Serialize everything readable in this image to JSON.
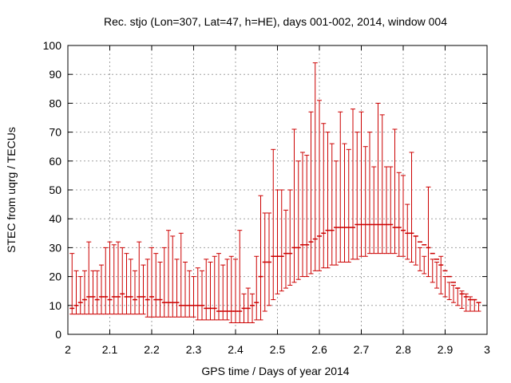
{
  "chart_data": {
    "type": "scatter",
    "title": "Rec. stjo (Lon=307, Lat=47, h=HE), days 001-002, 2014, window 004",
    "xlabel": "GPS time / Days of year 2014",
    "ylabel": "STEC from uqrg / TECUs",
    "xlim": [
      2,
      3
    ],
    "ylim": [
      0,
      100
    ],
    "xticks": [
      "2",
      "2.1",
      "2.2",
      "2.3",
      "2.4",
      "2.5",
      "2.6",
      "2.7",
      "2.8",
      "2.9",
      "3"
    ],
    "yticks": [
      "0",
      "10",
      "20",
      "30",
      "40",
      "50",
      "60",
      "70",
      "80",
      "90",
      "100"
    ],
    "grid": true,
    "color": "#cc0000",
    "series": [
      {
        "x": [
          2.01,
          2.02,
          2.03,
          2.04,
          2.05,
          2.06,
          2.07,
          2.08,
          2.09,
          2.1,
          2.11,
          2.12,
          2.13,
          2.14,
          2.15,
          2.16,
          2.17,
          2.18,
          2.19,
          2.2,
          2.21,
          2.22,
          2.23,
          2.24,
          2.25,
          2.26,
          2.27,
          2.28,
          2.29,
          2.3,
          2.31,
          2.32,
          2.33,
          2.34,
          2.35,
          2.36,
          2.37,
          2.38,
          2.39,
          2.4,
          2.41,
          2.42,
          2.43,
          2.44,
          2.45,
          2.46,
          2.47,
          2.48,
          2.49,
          2.5,
          2.51,
          2.52,
          2.53,
          2.54,
          2.55,
          2.56,
          2.57,
          2.58,
          2.59,
          2.6,
          2.61,
          2.62,
          2.63,
          2.64,
          2.65,
          2.66,
          2.67,
          2.68,
          2.69,
          2.7,
          2.71,
          2.72,
          2.73,
          2.74,
          2.75,
          2.76,
          2.77,
          2.78,
          2.79,
          2.8,
          2.81,
          2.82,
          2.83,
          2.84,
          2.85,
          2.86,
          2.87,
          2.88,
          2.89,
          2.9,
          2.91,
          2.92,
          2.93,
          2.94,
          2.95,
          2.96,
          2.97,
          2.98
        ],
        "y": [
          9,
          10,
          11,
          12,
          13,
          13,
          12,
          13,
          13,
          12,
          13,
          13,
          14,
          13,
          13,
          12,
          13,
          13,
          12,
          13,
          12,
          12,
          11,
          11,
          11,
          11,
          10,
          10,
          10,
          10,
          10,
          10,
          9,
          9,
          9,
          8,
          8,
          8,
          8,
          8,
          8,
          9,
          9,
          10,
          11,
          20,
          25,
          25,
          27,
          27,
          27,
          28,
          28,
          30,
          30,
          31,
          31,
          32,
          33,
          34,
          35,
          36,
          36,
          37,
          37,
          37,
          37,
          37,
          38,
          38,
          38,
          38,
          38,
          38,
          38,
          38,
          38,
          37,
          37,
          36,
          35,
          35,
          34,
          32,
          31,
          30,
          28,
          26,
          24,
          22,
          20,
          18,
          16,
          14,
          13,
          12,
          12,
          11
        ],
        "ymin": [
          7,
          7,
          7,
          7,
          7,
          7,
          7,
          7,
          7,
          7,
          7,
          7,
          7,
          7,
          7,
          7,
          7,
          7,
          6,
          6,
          6,
          6,
          6,
          6,
          6,
          6,
          6,
          6,
          6,
          6,
          5,
          5,
          5,
          5,
          5,
          5,
          5,
          5,
          4,
          4,
          4,
          4,
          4,
          4,
          5,
          5,
          8,
          10,
          12,
          14,
          15,
          16,
          17,
          18,
          19,
          20,
          20,
          21,
          22,
          22,
          23,
          23,
          24,
          24,
          25,
          25,
          25,
          26,
          26,
          27,
          27,
          28,
          28,
          28,
          28,
          28,
          28,
          28,
          27,
          27,
          26,
          25,
          24,
          22,
          21,
          20,
          18,
          16,
          14,
          13,
          12,
          11,
          10,
          9,
          8,
          8,
          8,
          8
        ],
        "ymax": [
          28,
          22,
          20,
          22,
          32,
          22,
          22,
          24,
          30,
          32,
          31,
          32,
          30,
          28,
          26,
          22,
          32,
          24,
          26,
          30,
          28,
          25,
          30,
          36,
          34,
          26,
          35,
          25,
          22,
          20,
          23,
          22,
          26,
          25,
          27,
          28,
          24,
          26,
          27,
          26,
          36,
          14,
          16,
          14,
          27,
          48,
          42,
          42,
          64,
          50,
          50,
          43,
          50,
          71,
          60,
          63,
          62,
          77,
          94,
          81,
          73,
          70,
          66,
          60,
          77,
          66,
          64,
          78,
          70,
          77,
          65,
          70,
          58,
          80,
          76,
          58,
          58,
          71,
          56,
          55,
          45,
          63,
          34,
          30,
          27,
          51,
          26,
          25,
          27,
          20,
          18,
          17,
          16,
          15,
          14,
          13,
          12,
          11
        ]
      }
    ]
  }
}
